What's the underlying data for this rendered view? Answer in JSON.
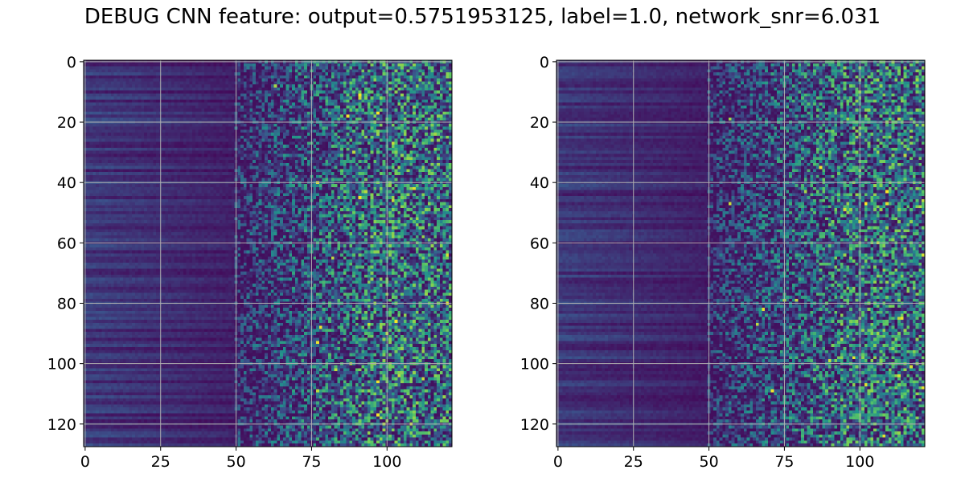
{
  "figure": {
    "title": "DEBUG CNN feature: output=0.5751953125, label=1.0, network_snr=6.031"
  },
  "chart_data": [
    {
      "type": "heatmap",
      "title": "",
      "xlabel": "",
      "ylabel": "",
      "rows": 128,
      "cols": 122,
      "xlim": [
        -0.5,
        121.5
      ],
      "ylim": [
        127.5,
        -0.5
      ],
      "x_ticks": [
        0,
        25,
        50,
        75,
        100
      ],
      "y_ticks": [
        0,
        20,
        40,
        60,
        80,
        100,
        120
      ],
      "grid": true,
      "colormap": "viridis",
      "colormap_colors": [
        "#440154",
        "#3b528b",
        "#21918c",
        "#5ec962",
        "#fde725"
      ]
    },
    {
      "type": "heatmap",
      "title": "",
      "xlabel": "",
      "ylabel": "",
      "rows": 128,
      "cols": 122,
      "xlim": [
        -0.5,
        121.5
      ],
      "ylim": [
        127.5,
        -0.5
      ],
      "x_ticks": [
        0,
        25,
        50,
        75,
        100
      ],
      "y_ticks": [
        0,
        20,
        40,
        60,
        80,
        100,
        120
      ],
      "grid": true,
      "colormap": "viridis",
      "colormap_colors": [
        "#440154",
        "#3b528b",
        "#21918c",
        "#5ec962",
        "#fde725"
      ]
    }
  ]
}
